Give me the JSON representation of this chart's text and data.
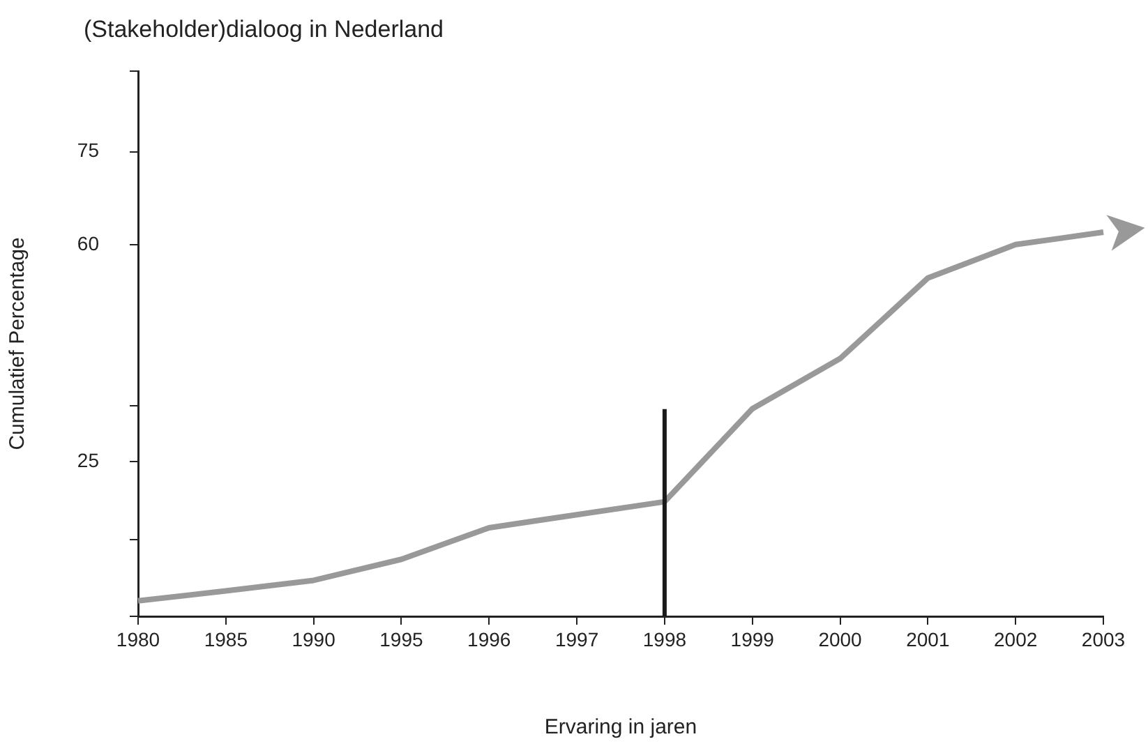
{
  "chart_data": {
    "type": "line",
    "title": "(Stakeholder)dialoog in Nederland",
    "xlabel": "Ervaring in jaren",
    "ylabel": "Cumulatief Percentage",
    "categories": [
      "1980",
      "1985",
      "1990",
      "1995",
      "1996",
      "1997",
      "1998",
      "1999",
      "2000",
      "2001",
      "2002",
      "2003"
    ],
    "ylim": [
      0,
      88
    ],
    "yticks": [
      {
        "value": 0,
        "label": null
      },
      {
        "value": 12.4,
        "label": null
      },
      25,
      {
        "value": 34,
        "label": null
      },
      60,
      75,
      {
        "value": 88,
        "label": null
      }
    ],
    "series": [
      {
        "color": "#999999",
        "values": [
          2.5,
          4.1,
          5.8,
          9.2,
          14.3,
          16.4,
          18.5,
          33.5,
          41.6,
          54.6,
          60.0,
          62.0
        ]
      }
    ],
    "ref_lines": [
      {
        "axis": "x",
        "value": "1998",
        "color": "#1a1a1a"
      }
    ],
    "grid": false,
    "legend": false,
    "marker": "none",
    "line_style": "solid"
  }
}
